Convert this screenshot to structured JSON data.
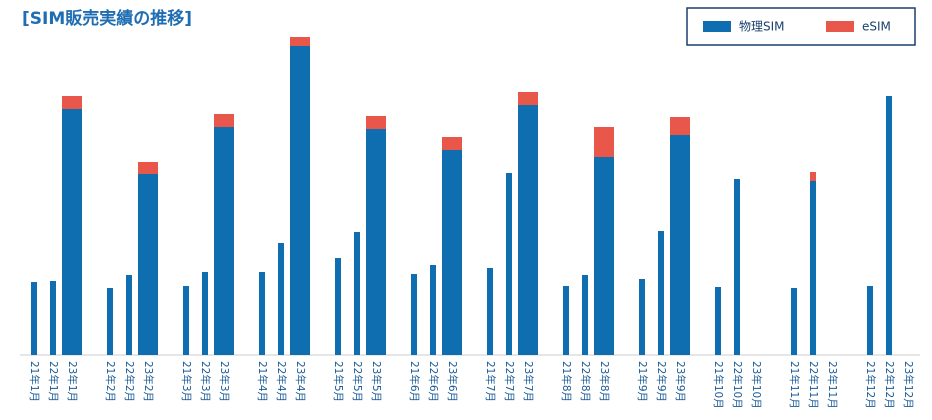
{
  "chart_data": {
    "type": "stacked-bar",
    "title": "[SIM販売実績の推移]",
    "categories": [
      "21年1月",
      "22年1月",
      "23年1月",
      "21年2月",
      "22年2月",
      "23年2月",
      "21年3月",
      "22年3月",
      "23年3月",
      "21年4月",
      "22年4月",
      "23年4月",
      "21年5月",
      "22年5月",
      "23年5月",
      "21年6月",
      "22年6月",
      "23年6月",
      "21年7月",
      "22年7月",
      "23年7月",
      "21年8月",
      "22年8月",
      "23年8月",
      "21年9月",
      "22年9月",
      "23年9月",
      "21年10月",
      "22年10月",
      "23年10月",
      "21年11月",
      "22年11月",
      "23年11月",
      "21年12月",
      "22年12月",
      "23年12月"
    ],
    "series": [
      {
        "name": "物理SIM",
        "color": "#0e6eb0",
        "values": [
          73,
          74,
          246,
          67,
          80,
          181,
          69,
          83,
          228,
          83,
          112,
          309,
          97,
          123,
          226,
          81,
          90,
          205,
          87,
          182,
          250,
          69,
          80,
          198,
          76,
          124,
          220,
          68,
          176,
          null,
          67,
          174,
          null,
          69,
          259,
          null
        ]
      },
      {
        "name": "eSIM",
        "color": "#e8574a",
        "values": [
          0,
          0,
          13,
          0,
          0,
          12,
          0,
          0,
          13,
          0,
          0,
          9,
          0,
          0,
          13,
          0,
          0,
          13,
          0,
          0,
          13,
          0,
          0,
          30,
          0,
          0,
          18,
          0,
          0,
          null,
          0,
          9,
          null,
          0,
          0,
          null
        ]
      }
    ],
    "legend": "top-right"
  }
}
